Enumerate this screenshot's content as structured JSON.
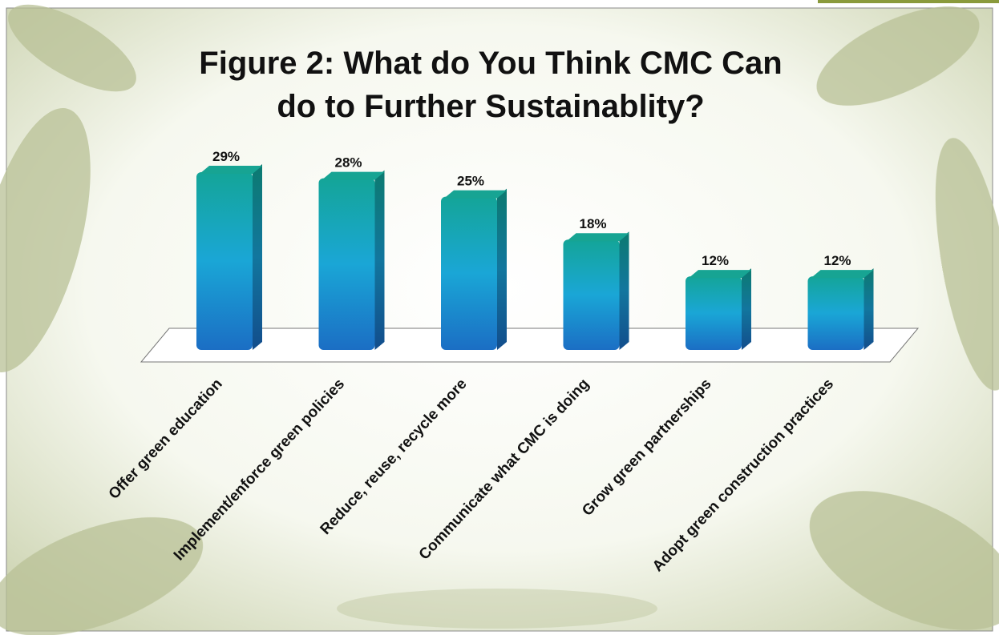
{
  "chart_data": {
    "type": "bar3d",
    "title": "Figure 2: What do You Think CMC Can do to Further Sustainablity?",
    "categories": [
      "Offer green education",
      "Implement/enforce green policies",
      "Reduce, reuse, recycle more",
      "Communicate what CMC is doing",
      "Grow green partnerships",
      "Adopt green construction practices"
    ],
    "values": [
      29,
      28,
      25,
      18,
      12,
      12
    ],
    "value_labels": [
      "29%",
      "28%",
      "25%",
      "18%",
      "12%",
      "12%"
    ],
    "color": "#1aa6d6"
  }
}
